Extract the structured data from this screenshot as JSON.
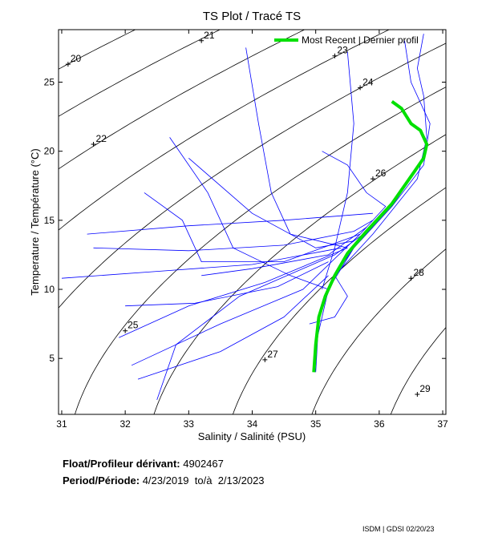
{
  "chart_data": {
    "type": "scatter",
    "title": "TS Plot / Tracé TS",
    "xlabel": "Salinity / Salinité (PSU)",
    "ylabel": "Temperature / Température (°C)",
    "xlim": [
      30.95,
      37.05
    ],
    "ylim": [
      0.95,
      28.8
    ],
    "xticks": [
      31,
      32,
      33,
      34,
      35,
      36,
      37
    ],
    "yticks": [
      5,
      10,
      15,
      20,
      25
    ],
    "legend": {
      "label": "Most Recent | Dernier profil",
      "placement": "top-right",
      "color": "#00e000"
    },
    "density_contours": [
      {
        "sigma": 20,
        "label_at": [
          31.1,
          26.3
        ]
      },
      {
        "sigma": 21,
        "label_at": [
          33.2,
          28.0
        ]
      },
      {
        "sigma": 22,
        "label_at": [
          31.5,
          20.5
        ]
      },
      {
        "sigma": 23,
        "label_at": [
          35.3,
          26.9
        ]
      },
      {
        "sigma": 24,
        "label_at": [
          35.7,
          24.6
        ]
      },
      {
        "sigma": 25,
        "label_at": [
          32.0,
          7.0
        ]
      },
      {
        "sigma": 26,
        "label_at": [
          35.9,
          18.0
        ]
      },
      {
        "sigma": 27,
        "label_at": [
          34.2,
          4.9
        ]
      },
      {
        "sigma": 28,
        "label_at": [
          36.5,
          10.8
        ]
      },
      {
        "sigma": 29,
        "label_at": [
          36.6,
          2.4
        ]
      }
    ],
    "profiles_color": "#0000ff",
    "profiles": [
      [
        [
          36.7,
          28.5
        ],
        [
          36.6,
          26
        ],
        [
          36.7,
          24
        ],
        [
          36.75,
          21
        ],
        [
          36.6,
          18
        ],
        [
          35.9,
          14
        ],
        [
          35.3,
          11
        ],
        [
          35.05,
          8
        ],
        [
          35.0,
          4
        ]
      ],
      [
        [
          36.4,
          28
        ],
        [
          36.5,
          25
        ],
        [
          36.8,
          22
        ],
        [
          36.7,
          19
        ],
        [
          36.2,
          16
        ],
        [
          35.6,
          13
        ],
        [
          35.2,
          10
        ],
        [
          35.0,
          6
        ]
      ],
      [
        [
          33.2,
          11
        ],
        [
          34.0,
          11.5
        ],
        [
          35.2,
          12.5
        ],
        [
          35.8,
          14.5
        ]
      ],
      [
        [
          31.5,
          13
        ],
        [
          33,
          12.8
        ],
        [
          34.5,
          13.2
        ],
        [
          35.6,
          14.2
        ],
        [
          35.9,
          15
        ]
      ],
      [
        [
          32.1,
          4.5
        ],
        [
          33.5,
          7.5
        ],
        [
          34.8,
          10
        ],
        [
          35.7,
          14
        ]
      ],
      [
        [
          31.9,
          6.5
        ],
        [
          33,
          8.8
        ],
        [
          34.2,
          10.5
        ],
        [
          35.5,
          13
        ]
      ],
      [
        [
          32.5,
          2
        ],
        [
          32.8,
          6
        ],
        [
          33.8,
          9.5
        ],
        [
          35.3,
          12.5
        ],
        [
          35.9,
          14.5
        ]
      ],
      [
        [
          31.0,
          10.8
        ],
        [
          32.5,
          11.3
        ],
        [
          34,
          11.8
        ],
        [
          35.4,
          13
        ]
      ],
      [
        [
          32.3,
          17
        ],
        [
          32.9,
          15
        ],
        [
          33.2,
          12
        ],
        [
          34.5,
          12
        ],
        [
          35.7,
          14
        ]
      ],
      [
        [
          33.9,
          27.5
        ],
        [
          34.1,
          22
        ],
        [
          34.3,
          17
        ],
        [
          34.6,
          14
        ],
        [
          35.5,
          13
        ]
      ],
      [
        [
          35.5,
          27.2
        ],
        [
          35.6,
          22
        ],
        [
          35.5,
          17
        ],
        [
          35.3,
          13
        ],
        [
          35.1,
          10
        ]
      ],
      [
        [
          32.7,
          21
        ],
        [
          33.3,
          17
        ],
        [
          33.7,
          13
        ],
        [
          34.6,
          11
        ],
        [
          35.2,
          10
        ]
      ],
      [
        [
          31.4,
          14
        ],
        [
          33,
          14.6
        ],
        [
          34.5,
          15
        ],
        [
          35.9,
          15.5
        ]
      ],
      [
        [
          32.2,
          3.5
        ],
        [
          33.5,
          5.5
        ],
        [
          34.5,
          8
        ],
        [
          35.2,
          11
        ]
      ],
      [
        [
          34.9,
          7.5
        ],
        [
          35.3,
          8
        ],
        [
          35.5,
          9.5
        ],
        [
          35.3,
          11
        ],
        [
          35.6,
          13
        ]
      ],
      [
        [
          35.1,
          20
        ],
        [
          35.5,
          19
        ],
        [
          35.8,
          17
        ],
        [
          36.1,
          16
        ],
        [
          35.7,
          14
        ]
      ],
      [
        [
          33.0,
          19.5
        ],
        [
          34.0,
          15.5
        ],
        [
          35.0,
          13
        ],
        [
          35.6,
          13.5
        ]
      ],
      [
        [
          32.0,
          8.8
        ],
        [
          33.1,
          9
        ],
        [
          34.4,
          10.2
        ],
        [
          35.2,
          12
        ]
      ]
    ],
    "most_recent": [
      [
        36.2,
        23.6
      ],
      [
        36.35,
        23.1
      ],
      [
        36.5,
        22
      ],
      [
        36.65,
        21.5
      ],
      [
        36.75,
        20.5
      ],
      [
        36.7,
        19.5
      ],
      [
        36.55,
        18.5
      ],
      [
        36.2,
        16.2
      ],
      [
        35.8,
        14.2
      ],
      [
        35.5,
        12.6
      ],
      [
        35.3,
        11
      ],
      [
        35.15,
        9.5
      ],
      [
        35.05,
        8
      ],
      [
        35.0,
        6
      ],
      [
        34.97,
        4
      ]
    ]
  },
  "info": {
    "float_label": "Float/Profileur dérivant:",
    "float_value": "4902467",
    "period_label": "Period/Période:",
    "period_start": "4/23/2019",
    "period_sep": "to/à",
    "period_end": "2/13/2023"
  },
  "footer": "ISDM | GDSI 02/20/23"
}
